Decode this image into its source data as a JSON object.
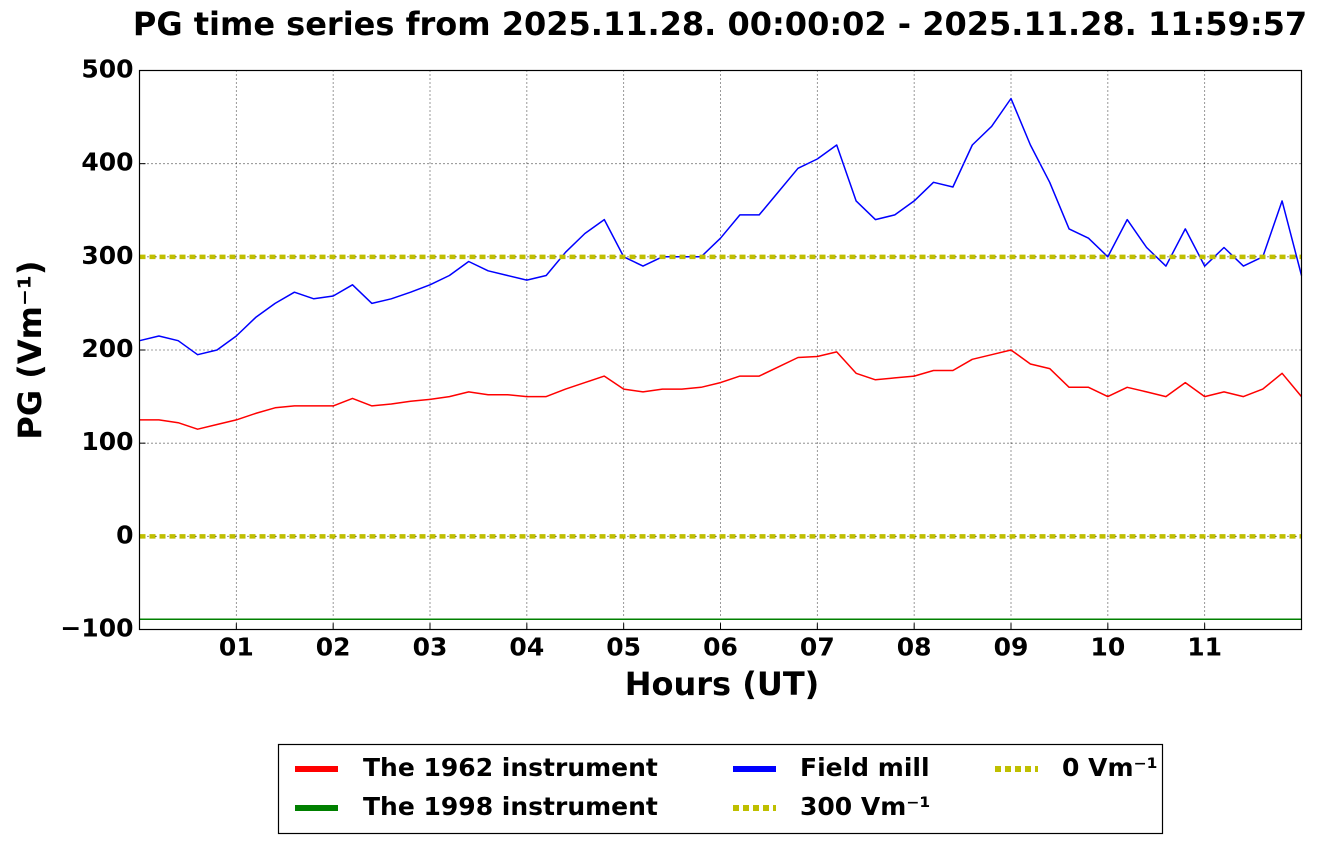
{
  "chart_data": {
    "type": "line",
    "title": "PG time series from 2025.11.28. 00:00:02 - 2025.11.28. 11:59:57",
    "x_label": "Hours (UT)",
    "y_label": "PG (Vm⁻¹)",
    "xlim": [
      0,
      12
    ],
    "xticks": [
      {
        "value": 1,
        "label": "01"
      },
      {
        "value": 2,
        "label": "02"
      },
      {
        "value": 3,
        "label": "03"
      },
      {
        "value": 4,
        "label": "04"
      },
      {
        "value": 5,
        "label": "05"
      },
      {
        "value": 6,
        "label": "06"
      },
      {
        "value": 7,
        "label": "07"
      },
      {
        "value": 8,
        "label": "08"
      },
      {
        "value": 9,
        "label": "09"
      },
      {
        "value": 10,
        "label": "10"
      },
      {
        "value": 11,
        "label": "11"
      }
    ],
    "ylim": [
      -100,
      500
    ],
    "yticks": [
      {
        "value": -100,
        "label": "−100"
      },
      0,
      100,
      200,
      300,
      400,
      500
    ],
    "grid": true,
    "x": [
      0,
      0.2,
      0.4,
      0.6,
      0.8,
      1,
      1.2,
      1.4,
      1.6,
      1.8,
      2,
      2.2,
      2.4,
      2.6,
      2.8,
      3,
      3.2,
      3.4,
      3.6,
      3.8,
      4,
      4.2,
      4.4,
      4.6,
      4.8,
      5,
      5.2,
      5.4,
      5.6,
      5.8,
      6,
      6.2,
      6.4,
      6.6,
      6.8,
      7,
      7.2,
      7.4,
      7.6,
      7.8,
      8,
      8.2,
      8.4,
      8.6,
      8.8,
      9,
      9.2,
      9.4,
      9.6,
      9.8,
      10,
      10.2,
      10.4,
      10.6,
      10.8,
      11,
      11.2,
      11.4,
      11.6,
      11.8,
      12
    ],
    "series": [
      {
        "name": "The 1962 instrument",
        "color": "#ff0000",
        "values": [
          125,
          125,
          122,
          115,
          120,
          125,
          132,
          138,
          140,
          140,
          140,
          148,
          140,
          142,
          145,
          147,
          150,
          155,
          152,
          152,
          150,
          150,
          158,
          165,
          172,
          158,
          155,
          158,
          158,
          160,
          165,
          172,
          172,
          182,
          192,
          193,
          198,
          175,
          168,
          170,
          172,
          178,
          178,
          190,
          195,
          200,
          185,
          180,
          160,
          160,
          150,
          160,
          155,
          150,
          165,
          150,
          155,
          150,
          158,
          175,
          150
        ]
      },
      {
        "name": "The 1998 instrument",
        "color": "#008000",
        "values": [
          -89,
          -89,
          -89,
          -89,
          -89,
          -89,
          -89,
          -89,
          -89,
          -89,
          -89,
          -89,
          -89,
          -89,
          -89,
          -89,
          -89,
          -89,
          -89,
          -89,
          -89,
          -89,
          -89,
          -89,
          -89,
          -89,
          -89,
          -89,
          -89,
          -89,
          -89,
          -89,
          -89,
          -89,
          -89,
          -89,
          -89,
          -89,
          -89,
          -89,
          -89,
          -89,
          -89,
          -89,
          -89,
          -89,
          -89,
          -89,
          -89,
          -89,
          -89,
          -89,
          -89,
          -89,
          -89,
          -89,
          -89,
          -89,
          -89,
          -89,
          -89
        ]
      },
      {
        "name": "Field mill",
        "color": "#0000ff",
        "values": [
          210,
          215,
          210,
          195,
          200,
          215,
          235,
          250,
          262,
          255,
          258,
          270,
          250,
          255,
          262,
          270,
          280,
          295,
          285,
          280,
          275,
          280,
          305,
          325,
          340,
          300,
          290,
          300,
          300,
          300,
          320,
          345,
          345,
          370,
          395,
          405,
          420,
          360,
          340,
          345,
          360,
          380,
          375,
          420,
          440,
          470,
          420,
          380,
          330,
          320,
          300,
          340,
          310,
          290,
          330,
          290,
          310,
          290,
          300,
          360,
          280
        ]
      },
      {
        "name": "300 Vm⁻¹",
        "color": "#bfbf00",
        "value": 300
      },
      {
        "name": "0 Vm⁻¹",
        "color": "#bfbf00",
        "value": 0
      }
    ]
  }
}
